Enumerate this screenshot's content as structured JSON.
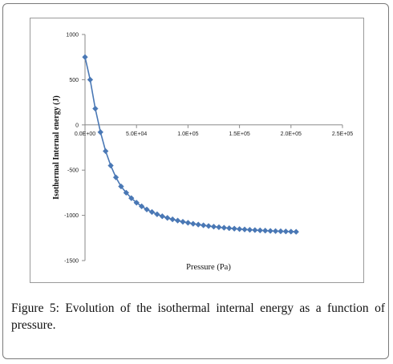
{
  "caption": {
    "label": "Figure 5:",
    "text": "Evolution of the isothermal internal energy as a function of pressure."
  },
  "chart_data": {
    "type": "line",
    "title": "",
    "xlabel": "Pressure (Pa)",
    "ylabel": "Isothermal Internal energy  (J)",
    "xlim": [
      0,
      250000
    ],
    "ylim": [
      -1500,
      1000
    ],
    "x_ticks": [
      0,
      50000,
      100000,
      150000,
      200000,
      250000
    ],
    "x_tick_labels": [
      "0.0E+00",
      "5.0E+04",
      "1.0E+05",
      "1.5E+05",
      "2.0E+05",
      "2.5E+05"
    ],
    "y_ticks": [
      1000,
      500,
      0,
      -500,
      -1000,
      -1500
    ],
    "y_tick_labels": [
      "1000",
      "500",
      "0",
      "-500",
      "-1000",
      "-1500"
    ],
    "grid": false,
    "legend": "none",
    "marker": "diamond",
    "color": "#4a78b5",
    "series": [
      {
        "x": [
          0,
          5000,
          10000,
          15000,
          20000,
          25000,
          30000,
          35000,
          40000,
          45000,
          50000,
          55000,
          60000,
          65000,
          70000,
          75000,
          80000,
          85000,
          90000,
          95000,
          100000,
          105000,
          110000,
          115000,
          120000,
          125000,
          130000,
          135000,
          140000,
          145000,
          150000,
          155000,
          160000,
          165000,
          170000,
          175000,
          180000,
          185000,
          190000,
          195000,
          200000,
          205000
        ],
        "y": [
          750,
          500,
          180,
          -80,
          -290,
          -450,
          -580,
          -680,
          -750,
          -810,
          -860,
          -900,
          -935,
          -963,
          -988,
          -1010,
          -1028,
          -1044,
          -1058,
          -1071,
          -1082,
          -1093,
          -1102,
          -1110,
          -1118,
          -1125,
          -1131,
          -1137,
          -1142,
          -1147,
          -1152,
          -1156,
          -1160,
          -1163,
          -1166,
          -1169,
          -1172,
          -1174,
          -1176,
          -1178,
          -1180,
          -1182
        ]
      }
    ]
  }
}
